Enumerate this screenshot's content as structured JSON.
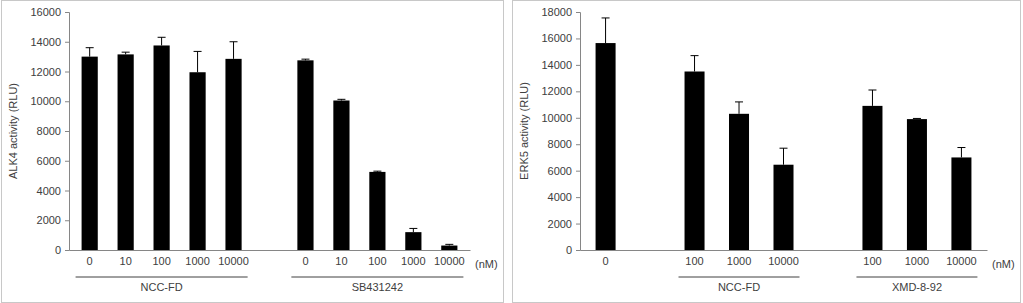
{
  "chart_data": [
    {
      "type": "bar",
      "ylabel": "ALK4 activity (RLU)",
      "xlabel": "(nM)",
      "categories": [
        "0",
        "10",
        "100",
        "1000",
        "10000",
        null,
        "0",
        "10",
        "100",
        "1000",
        "10000"
      ],
      "values": [
        13000,
        13150,
        13750,
        11950,
        12850,
        null,
        12750,
        10050,
        5250,
        1200,
        300
      ],
      "errors": [
        600,
        150,
        550,
        1400,
        1150,
        null,
        80,
        80,
        50,
        250,
        80
      ],
      "group_labels": [
        {
          "label": "NCC-FD",
          "from": 0,
          "to": 4
        },
        {
          "label": "SB431242",
          "from": 6,
          "to": 10
        }
      ],
      "color": "#000000",
      "ylim": [
        0,
        16000
      ],
      "yticks": [
        0,
        2000,
        4000,
        6000,
        8000,
        10000,
        12000,
        14000,
        16000
      ],
      "grid": false
    },
    {
      "type": "bar",
      "ylabel": "ERK5 activity (RLU)",
      "xlabel": "(nM)",
      "categories": [
        "0",
        null,
        "100",
        "1000",
        "10000",
        null,
        "100",
        "1000",
        "10000"
      ],
      "values": [
        15650,
        null,
        13500,
        10300,
        6450,
        null,
        10900,
        9900,
        7000
      ],
      "errors": [
        1900,
        null,
        1200,
        900,
        1250,
        null,
        1200,
        50,
        750
      ],
      "group_labels": [
        {
          "label": "NCC-FD",
          "from": 2,
          "to": 4
        },
        {
          "label": "XMD-8-92",
          "from": 6,
          "to": 8
        }
      ],
      "color": "#000000",
      "ylim": [
        0,
        18000
      ],
      "yticks": [
        0,
        2000,
        4000,
        6000,
        8000,
        10000,
        12000,
        14000,
        16000,
        18000
      ],
      "grid": false
    }
  ]
}
